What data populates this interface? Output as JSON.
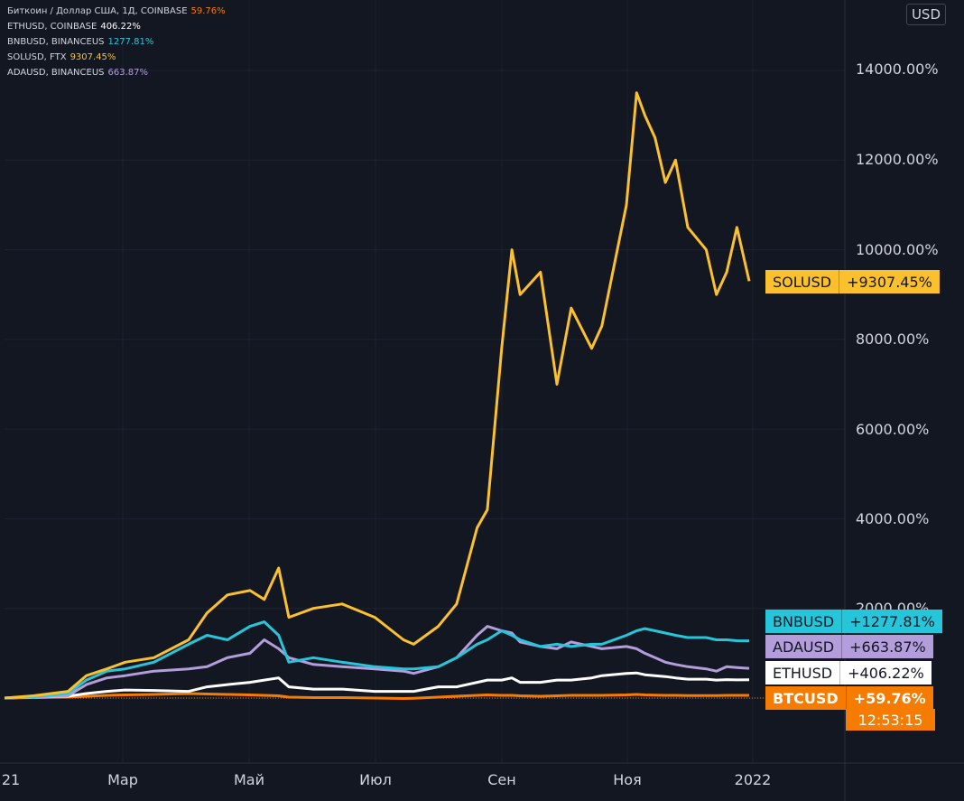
{
  "currency_button": "USD",
  "legend": [
    {
      "label": "Биткоин / Доллар США, 1Д, COINBASE",
      "value": "59.76%",
      "color": "#f57c00"
    },
    {
      "label": "ETHUSD, COINBASE",
      "value": "406.22%",
      "color": "#ffffff"
    },
    {
      "label": "BNBUSD, BINANCEUS",
      "value": "1277.81%",
      "color": "#26c6da"
    },
    {
      "label": "SOLUSD, FTX",
      "value": "9307.45%",
      "color": "#fbc02d"
    },
    {
      "label": "ADAUSD, BINANCEUS",
      "value": "663.87%",
      "color": "#b39ddb"
    }
  ],
  "tags": {
    "sol": {
      "name": "SOLUSD",
      "value": "+9307.45%"
    },
    "bnb": {
      "name": "BNBUSD",
      "value": "+1277.81%"
    },
    "ada": {
      "name": "ADAUSD",
      "value": "+663.87%"
    },
    "eth": {
      "name": "ETHUSD",
      "value": "+406.22%"
    },
    "btc": {
      "name": "BTCUSD",
      "value": "+59.76%"
    },
    "time": "12:53:15"
  },
  "y_ticks": [
    "14000.00%",
    "12000.00%",
    "10000.00%",
    "8000.00%",
    "6000.00%",
    "4000.00%",
    "2000.00%"
  ],
  "x_ticks": [
    "21",
    "Мар",
    "Май",
    "Июл",
    "Сен",
    "Ноя",
    "2022"
  ],
  "chart_data": {
    "type": "line",
    "x_ticks": [
      "21",
      "Мар",
      "Май",
      "Июл",
      "Сен",
      "Ноя",
      "2022"
    ],
    "ylim": [
      -800,
      15500
    ],
    "y_ticks": [
      2000,
      4000,
      6000,
      8000,
      10000,
      12000,
      14000
    ],
    "grid": true,
    "x": [
      "2021-01-01",
      "2021-01-15",
      "2021-02-01",
      "2021-02-10",
      "2021-02-20",
      "2021-03-01",
      "2021-03-15",
      "2021-04-01",
      "2021-04-10",
      "2021-04-20",
      "2021-05-01",
      "2021-05-08",
      "2021-05-15",
      "2021-05-20",
      "2021-06-01",
      "2021-06-15",
      "2021-07-01",
      "2021-07-15",
      "2021-07-20",
      "2021-08-01",
      "2021-08-10",
      "2021-08-20",
      "2021-08-25",
      "2021-09-01",
      "2021-09-06",
      "2021-09-10",
      "2021-09-20",
      "2021-09-28",
      "2021-10-05",
      "2021-10-15",
      "2021-10-20",
      "2021-11-01",
      "2021-11-06",
      "2021-11-10",
      "2021-11-15",
      "2021-11-20",
      "2021-11-25",
      "2021-12-01",
      "2021-12-10",
      "2021-12-15",
      "2021-12-20",
      "2021-12-25",
      "2021-12-31"
    ],
    "series": [
      {
        "name": "SOLUSD",
        "color": "#fbc02d",
        "values": [
          0,
          50,
          150,
          500,
          650,
          800,
          900,
          1300,
          1900,
          2300,
          2400,
          2200,
          2900,
          1800,
          2000,
          2100,
          1800,
          1300,
          1200,
          1600,
          2100,
          3800,
          4200,
          7800,
          10000,
          9000,
          9500,
          7000,
          8700,
          7800,
          8300,
          11000,
          13500,
          13000,
          12500,
          11500,
          12000,
          10500,
          10000,
          9000,
          9500,
          10500,
          9300
        ]
      },
      {
        "name": "BNBUSD",
        "color": "#26c6da",
        "values": [
          0,
          30,
          100,
          400,
          600,
          650,
          800,
          1200,
          1400,
          1300,
          1600,
          1700,
          1400,
          800,
          900,
          800,
          700,
          650,
          650,
          700,
          900,
          1200,
          1300,
          1500,
          1400,
          1300,
          1150,
          1200,
          1150,
          1200,
          1200,
          1400,
          1500,
          1550,
          1500,
          1450,
          1400,
          1350,
          1350,
          1300,
          1300,
          1280,
          1277
        ]
      },
      {
        "name": "ADAUSD",
        "color": "#b39ddb",
        "values": [
          0,
          20,
          50,
          300,
          450,
          500,
          600,
          650,
          700,
          900,
          1000,
          1300,
          1100,
          900,
          750,
          700,
          650,
          600,
          550,
          700,
          900,
          1400,
          1600,
          1500,
          1450,
          1250,
          1150,
          1100,
          1250,
          1150,
          1100,
          1150,
          1100,
          1000,
          900,
          800,
          750,
          700,
          650,
          600,
          700,
          680,
          663
        ]
      },
      {
        "name": "ETHUSD",
        "color": "#ffffff",
        "values": [
          0,
          20,
          40,
          100,
          150,
          180,
          170,
          150,
          250,
          300,
          350,
          400,
          450,
          250,
          200,
          200,
          150,
          150,
          150,
          250,
          250,
          350,
          400,
          400,
          450,
          350,
          350,
          400,
          400,
          450,
          500,
          550,
          560,
          520,
          500,
          480,
          450,
          420,
          420,
          400,
          410,
          405,
          406
        ]
      },
      {
        "name": "BTCUSD",
        "color": "#f57c00",
        "values": [
          0,
          10,
          20,
          40,
          60,
          70,
          80,
          100,
          90,
          80,
          70,
          60,
          50,
          20,
          10,
          10,
          0,
          -10,
          -5,
          20,
          40,
          60,
          70,
          60,
          60,
          50,
          40,
          50,
          60,
          60,
          60,
          70,
          80,
          70,
          65,
          60,
          60,
          55,
          55,
          55,
          60,
          60,
          60
        ]
      }
    ]
  }
}
